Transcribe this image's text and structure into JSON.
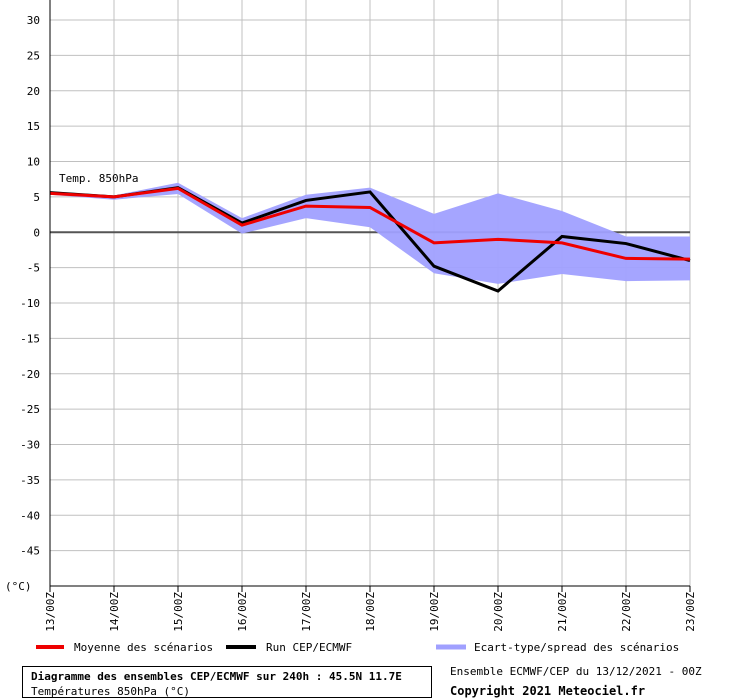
{
  "chart_data": {
    "type": "line",
    "annotation": "Temp. 850hPa",
    "unit_label": "(°C)",
    "x": [
      "13/00Z",
      "14/00Z",
      "15/00Z",
      "16/00Z",
      "17/00Z",
      "18/00Z",
      "19/00Z",
      "20/00Z",
      "21/00Z",
      "22/00Z",
      "23/00Z"
    ],
    "ylim": [
      -50,
      30
    ],
    "yticks": [
      30,
      25,
      20,
      15,
      10,
      5,
      0,
      -5,
      -10,
      -15,
      -20,
      -25,
      -30,
      -35,
      -40,
      -45
    ],
    "grid": true,
    "series": [
      {
        "name": "Moyenne des scénarios",
        "color": "#ee0000",
        "kind": "line",
        "values": [
          5.5,
          5.0,
          6.2,
          1.0,
          3.7,
          3.5,
          -1.5,
          -1.0,
          -1.5,
          -3.7,
          -3.8
        ]
      },
      {
        "name": "Run CEP/ECMWF",
        "color": "#000000",
        "kind": "line",
        "values": [
          5.6,
          5.0,
          6.3,
          1.3,
          4.5,
          5.7,
          -4.8,
          -8.3,
          -0.6,
          -1.6,
          -4.0
        ]
      },
      {
        "name": "Ecart-type/spread des scénarios",
        "color": "#a0a0ff",
        "kind": "band",
        "upper": [
          5.8,
          5.2,
          7.0,
          2.0,
          5.3,
          6.3,
          2.6,
          5.5,
          3.0,
          -0.6,
          -0.6
        ],
        "lower": [
          5.3,
          4.6,
          5.4,
          -0.2,
          2.0,
          0.7,
          -5.8,
          -7.3,
          -5.9,
          -6.9,
          -6.8
        ]
      }
    ]
  },
  "footer": {
    "title": "Diagramme des ensembles CEP/ECMWF sur 240h : 45.5N 11.7E",
    "subtitle": "Températures 850hPa (°C)",
    "run_info": "Ensemble ECMWF/CEP du 13/12/2021 - 00Z",
    "copyright": "Copyright 2021 Meteociel.fr"
  }
}
